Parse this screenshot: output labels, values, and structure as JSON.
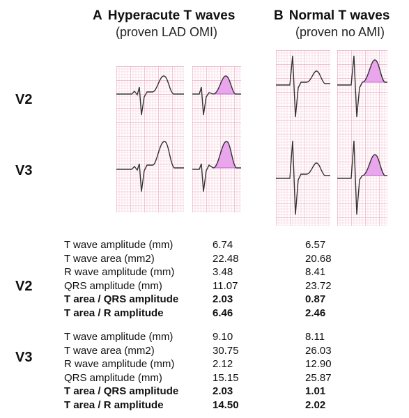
{
  "panels": [
    {
      "letter": "A",
      "title": "Hyperacute T waves",
      "subtitle": "(proven LAD OMI)"
    },
    {
      "letter": "B",
      "title": "Normal T waves",
      "subtitle": "(proven no AMI)"
    }
  ],
  "leads": [
    "V2",
    "V3"
  ],
  "colors": {
    "grid_minor": "#f4c6d4",
    "grid_major": "#e58aa8",
    "trace": "#333333",
    "t_fill": "#e9a6ec",
    "t_line": "#b640c4"
  },
  "table": {
    "blocks": [
      {
        "lead": "V2",
        "rows": [
          {
            "label": "T wave amplitude (mm)",
            "a": "6.74",
            "b": "6.57",
            "bold": false
          },
          {
            "label": "T wave area (mm2)",
            "a": "22.48",
            "b": "20.68",
            "bold": false
          },
          {
            "label": "R wave amplitude (mm)",
            "a": "3.48",
            "b": "8.41",
            "bold": false
          },
          {
            "label": "QRS amplitude (mm)",
            "a": "11.07",
            "b": "23.72",
            "bold": false
          },
          {
            "label": "T area / QRS amplitude",
            "a": "2.03",
            "b": "0.87",
            "bold": true
          },
          {
            "label": "T area / R amplitude",
            "a": "6.46",
            "b": "2.46",
            "bold": true
          }
        ]
      },
      {
        "lead": "V3",
        "rows": [
          {
            "label": "T wave amplitude (mm)",
            "a": "9.10",
            "b": "8.11",
            "bold": false
          },
          {
            "label": "T wave area (mm2)",
            "a": "30.75",
            "b": "26.03",
            "bold": false
          },
          {
            "label": "R wave amplitude (mm)",
            "a": "2.12",
            "b": "12.90",
            "bold": false
          },
          {
            "label": "QRS amplitude (mm)",
            "a": "15.15",
            "b": "25.87",
            "bold": false
          },
          {
            "label": "T area / QRS amplitude",
            "a": "2.03",
            "b": "1.01",
            "bold": true
          },
          {
            "label": "T area / R amplitude",
            "a": "14.50",
            "b": "2.02",
            "bold": true
          }
        ]
      }
    ]
  }
}
